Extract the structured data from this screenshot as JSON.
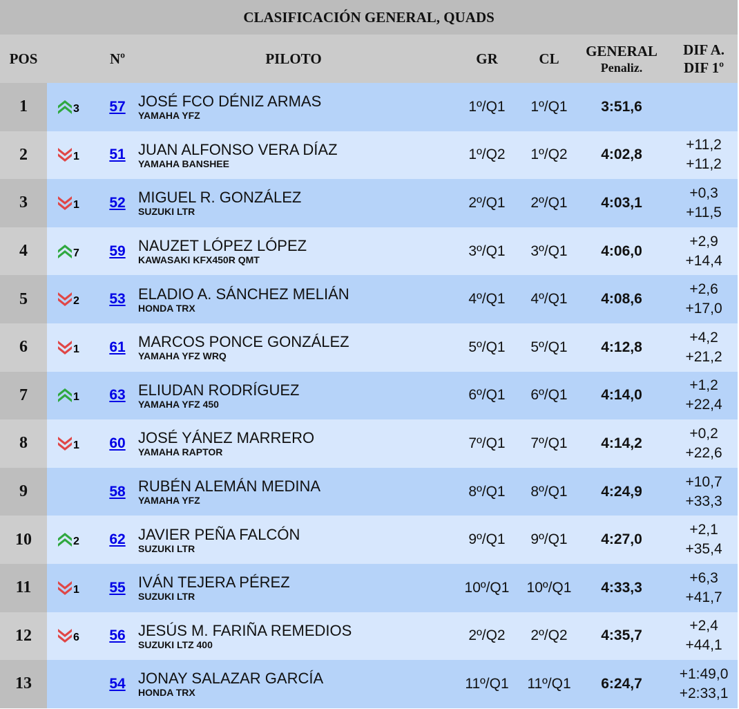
{
  "title": "CLASIFICACIÓN GENERAL, QUADS",
  "headers": {
    "pos": "POS",
    "num": "Nº",
    "piloto": "PILOTO",
    "gr": "GR",
    "cl": "CL",
    "general": "GENERAL",
    "penaliz": "Penaliz.",
    "dif_a": "DIF A.",
    "dif_1": "DIF 1º"
  },
  "colors": {
    "up": "#2fa83f",
    "down": "#e04646",
    "link": "#0000e6"
  },
  "rows": [
    {
      "pos": "1",
      "trend": "up",
      "change": "3",
      "num": "57",
      "name": "JOSÉ FCO DÉNIZ ARMAS",
      "bike": "YAMAHA YFZ",
      "gr": "1º/Q1",
      "cl": "1º/Q1",
      "general": "3:51,6",
      "dif_a": "",
      "dif_1": ""
    },
    {
      "pos": "2",
      "trend": "down",
      "change": "1",
      "num": "51",
      "name": "JUAN ALFONSO VERA DÍAZ",
      "bike": "YAMAHA BANSHEE",
      "gr": "1º/Q2",
      "cl": "1º/Q2",
      "general": "4:02,8",
      "dif_a": "+11,2",
      "dif_1": "+11,2"
    },
    {
      "pos": "3",
      "trend": "down",
      "change": "1",
      "num": "52",
      "name": "MIGUEL R. GONZÁLEZ",
      "bike": "SUZUKI LTR",
      "gr": "2º/Q1",
      "cl": "2º/Q1",
      "general": "4:03,1",
      "dif_a": "+0,3",
      "dif_1": "+11,5"
    },
    {
      "pos": "4",
      "trend": "up",
      "change": "7",
      "num": "59",
      "name": "NAUZET LÓPEZ LÓPEZ",
      "bike": "KAWASAKI KFX450R QMT",
      "gr": "3º/Q1",
      "cl": "3º/Q1",
      "general": "4:06,0",
      "dif_a": "+2,9",
      "dif_1": "+14,4"
    },
    {
      "pos": "5",
      "trend": "down",
      "change": "2",
      "num": "53",
      "name": "ELADIO A. SÁNCHEZ MELIÁN",
      "bike": "HONDA TRX",
      "gr": "4º/Q1",
      "cl": "4º/Q1",
      "general": "4:08,6",
      "dif_a": "+2,6",
      "dif_1": "+17,0"
    },
    {
      "pos": "6",
      "trend": "down",
      "change": "1",
      "num": "61",
      "name": "MARCOS PONCE GONZÁLEZ",
      "bike": "YAMAHA YFZ WRQ",
      "gr": "5º/Q1",
      "cl": "5º/Q1",
      "general": "4:12,8",
      "dif_a": "+4,2",
      "dif_1": "+21,2"
    },
    {
      "pos": "7",
      "trend": "up",
      "change": "1",
      "num": "63",
      "name": "ELIUDAN RODRÍGUEZ",
      "bike": "YAMAHA YFZ 450",
      "gr": "6º/Q1",
      "cl": "6º/Q1",
      "general": "4:14,0",
      "dif_a": "+1,2",
      "dif_1": "+22,4"
    },
    {
      "pos": "8",
      "trend": "down",
      "change": "1",
      "num": "60",
      "name": "JOSÉ YÁNEZ MARRERO",
      "bike": "YAMAHA RAPTOR",
      "gr": "7º/Q1",
      "cl": "7º/Q1",
      "general": "4:14,2",
      "dif_a": "+0,2",
      "dif_1": "+22,6"
    },
    {
      "pos": "9",
      "trend": "",
      "change": "",
      "num": "58",
      "name": "RUBÉN ALEMÁN MEDINA",
      "bike": "YAMAHA YFZ",
      "gr": "8º/Q1",
      "cl": "8º/Q1",
      "general": "4:24,9",
      "dif_a": "+10,7",
      "dif_1": "+33,3"
    },
    {
      "pos": "10",
      "trend": "up",
      "change": "2",
      "num": "62",
      "name": "JAVIER PEÑA FALCÓN",
      "bike": "SUZUKI LTR",
      "gr": "9º/Q1",
      "cl": "9º/Q1",
      "general": "4:27,0",
      "dif_a": "+2,1",
      "dif_1": "+35,4"
    },
    {
      "pos": "11",
      "trend": "down",
      "change": "1",
      "num": "55",
      "name": "IVÁN TEJERA PÉREZ",
      "bike": "SUZUKI LTR",
      "gr": "10º/Q1",
      "cl": "10º/Q1",
      "general": "4:33,3",
      "dif_a": "+6,3",
      "dif_1": "+41,7"
    },
    {
      "pos": "12",
      "trend": "down",
      "change": "6",
      "num": "56",
      "name": "JESÚS M. FARIÑA REMEDIOS",
      "bike": "SUZUKI LTZ 400",
      "gr": "2º/Q2",
      "cl": "2º/Q2",
      "general": "4:35,7",
      "dif_a": "+2,4",
      "dif_1": "+44,1"
    },
    {
      "pos": "13",
      "trend": "",
      "change": "",
      "num": "54",
      "name": "JONAY SALAZAR GARCÍA",
      "bike": "HONDA TRX",
      "gr": "11º/Q1",
      "cl": "11º/Q1",
      "general": "6:24,7",
      "dif_a": "+1:49,0",
      "dif_1": "+2:33,1"
    }
  ]
}
